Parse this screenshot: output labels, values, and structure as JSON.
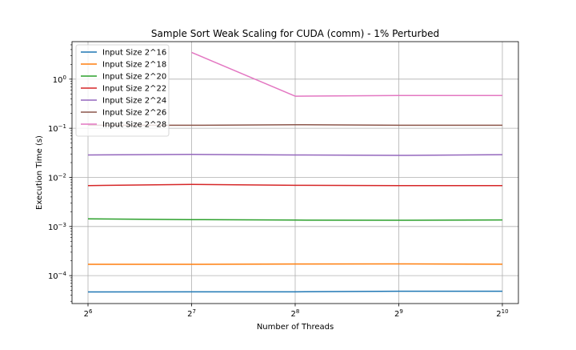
{
  "chart_data": {
    "type": "line",
    "title": "Sample Sort Weak Scaling for CUDA (comm) - 1% Perturbed",
    "xlabel": "Number of Threads",
    "ylabel": "Execution Time (s)",
    "x_scale": "log2",
    "y_scale": "log10",
    "x": [
      64,
      128,
      256,
      512,
      1024
    ],
    "x_tick_labels": [
      {
        "base": "2",
        "exp": "6"
      },
      {
        "base": "2",
        "exp": "7"
      },
      {
        "base": "2",
        "exp": "8"
      },
      {
        "base": "2",
        "exp": "9"
      },
      {
        "base": "2",
        "exp": "10"
      }
    ],
    "y_tick_labels": [
      {
        "base": "10",
        "exp": "−4",
        "value": 0.0001
      },
      {
        "base": "10",
        "exp": "−3",
        "value": 0.001
      },
      {
        "base": "10",
        "exp": "−2",
        "value": 0.01
      },
      {
        "base": "10",
        "exp": "−1",
        "value": 0.1
      },
      {
        "base": "10",
        "exp": "0",
        "value": 1
      }
    ],
    "xlim": [
      57.5,
      1140
    ],
    "ylim": [
      2.7e-05,
      5.8
    ],
    "grid": true,
    "legend_position": "upper-left",
    "series": [
      {
        "name": "Input Size 2^16",
        "color": "#1f77b4",
        "values": [
          4.65e-05,
          4.68e-05,
          4.68e-05,
          4.8e-05,
          4.8e-05
        ]
      },
      {
        "name": "Input Size 2^18",
        "color": "#ff7f0e",
        "values": [
          0.00017,
          0.00017,
          0.000172,
          0.000173,
          0.000171
        ]
      },
      {
        "name": "Input Size 2^20",
        "color": "#2ca02c",
        "values": [
          0.00143,
          0.00138,
          0.00135,
          0.00134,
          0.00136
        ]
      },
      {
        "name": "Input Size 2^22",
        "color": "#d62728",
        "values": [
          0.0068,
          0.0072,
          0.0069,
          0.0068,
          0.0068
        ]
      },
      {
        "name": "Input Size 2^24",
        "color": "#9467bd",
        "values": [
          0.0286,
          0.0294,
          0.0286,
          0.028,
          0.029
        ]
      },
      {
        "name": "Input Size 2^26",
        "color": "#8c564b",
        "values": [
          0.115,
          0.115,
          0.118,
          0.115,
          0.115
        ]
      },
      {
        "name": "Input Size 2^28",
        "color": "#e377c2",
        "values": [
          null,
          3.5,
          0.45,
          0.465,
          0.465
        ]
      }
    ]
  }
}
